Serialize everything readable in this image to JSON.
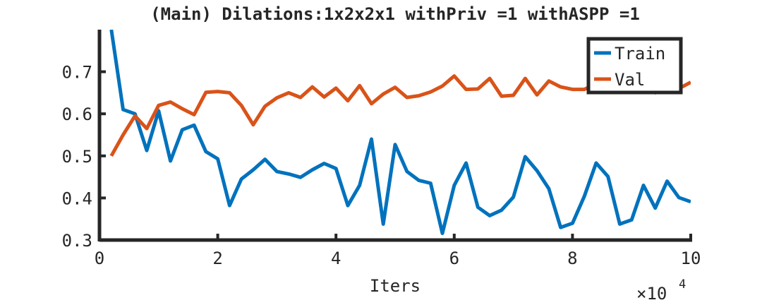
{
  "chart_data": {
    "type": "line",
    "title": "(Main) Dilations:1x2x2x1 withPriv =1 withASPP =1",
    "xlabel": "Iters",
    "x_exponent_label": "×10",
    "x_exponent_power": "4",
    "ylabel": "",
    "xlim": [
      0,
      10
    ],
    "ylim": [
      0.3,
      0.8
    ],
    "xticks": [
      0,
      2,
      4,
      6,
      8,
      10
    ],
    "xtick_labels": [
      "0",
      "2",
      "4",
      "6",
      "8",
      "10"
    ],
    "yticks": [
      0.3,
      0.4,
      0.5,
      0.6,
      0.7
    ],
    "ytick_labels": [
      "0.3",
      "0.4",
      "0.5",
      "0.6",
      "0.7"
    ],
    "grid": false,
    "legend_position": "top-right",
    "series": [
      {
        "name": "Train",
        "color": "#0072BD",
        "x": [
          0.2,
          0.4,
          0.6,
          0.8,
          1.0,
          1.2,
          1.4,
          1.6,
          1.8,
          2.0,
          2.2,
          2.4,
          2.6,
          2.8,
          3.0,
          3.2,
          3.4,
          3.6,
          3.8,
          4.0,
          4.2,
          4.4,
          4.6,
          4.8,
          5.0,
          5.2,
          5.4,
          5.6,
          5.8,
          6.0,
          6.2,
          6.4,
          6.6,
          6.8,
          7.0,
          7.2,
          7.4,
          7.6,
          7.8,
          8.0,
          8.2,
          8.4,
          8.6,
          8.8,
          9.0,
          9.2,
          9.4,
          9.6,
          9.8,
          10.0
        ],
        "values": [
          0.8,
          0.61,
          0.6,
          0.513,
          0.607,
          0.488,
          0.562,
          0.573,
          0.51,
          0.493,
          0.382,
          0.445,
          0.467,
          0.492,
          0.463,
          0.457,
          0.449,
          0.467,
          0.482,
          0.47,
          0.382,
          0.43,
          0.54,
          0.338,
          0.527,
          0.463,
          0.442,
          0.435,
          0.316,
          0.43,
          0.483,
          0.378,
          0.358,
          0.371,
          0.402,
          0.498,
          0.465,
          0.422,
          0.33,
          0.34,
          0.404,
          0.483,
          0.451,
          0.338,
          0.348,
          0.43,
          0.376,
          0.44,
          0.401,
          0.391
        ]
      },
      {
        "name": "Val",
        "color": "#D95319",
        "x": [
          0.2,
          0.4,
          0.6,
          0.8,
          1.0,
          1.2,
          1.4,
          1.6,
          1.8,
          2.0,
          2.2,
          2.4,
          2.6,
          2.8,
          3.0,
          3.2,
          3.4,
          3.6,
          3.8,
          4.0,
          4.2,
          4.4,
          4.6,
          4.8,
          5.0,
          5.2,
          5.4,
          5.6,
          5.8,
          6.0,
          6.2,
          6.4,
          6.6,
          6.8,
          7.0,
          7.2,
          7.4,
          7.6,
          7.8,
          8.0,
          8.2,
          8.4,
          8.6,
          8.8,
          9.0,
          9.2,
          9.4,
          9.6,
          9.8,
          10.0
        ],
        "values": [
          0.5,
          0.55,
          0.595,
          0.565,
          0.62,
          0.628,
          0.612,
          0.598,
          0.651,
          0.653,
          0.65,
          0.62,
          0.574,
          0.618,
          0.638,
          0.65,
          0.639,
          0.664,
          0.64,
          0.661,
          0.631,
          0.667,
          0.624,
          0.647,
          0.663,
          0.639,
          0.643,
          0.652,
          0.666,
          0.69,
          0.658,
          0.659,
          0.684,
          0.642,
          0.644,
          0.684,
          0.645,
          0.678,
          0.664,
          0.658,
          0.658,
          0.672,
          0.663,
          0.655,
          0.66,
          0.67,
          0.65,
          0.665,
          0.66,
          0.675
        ]
      }
    ]
  }
}
